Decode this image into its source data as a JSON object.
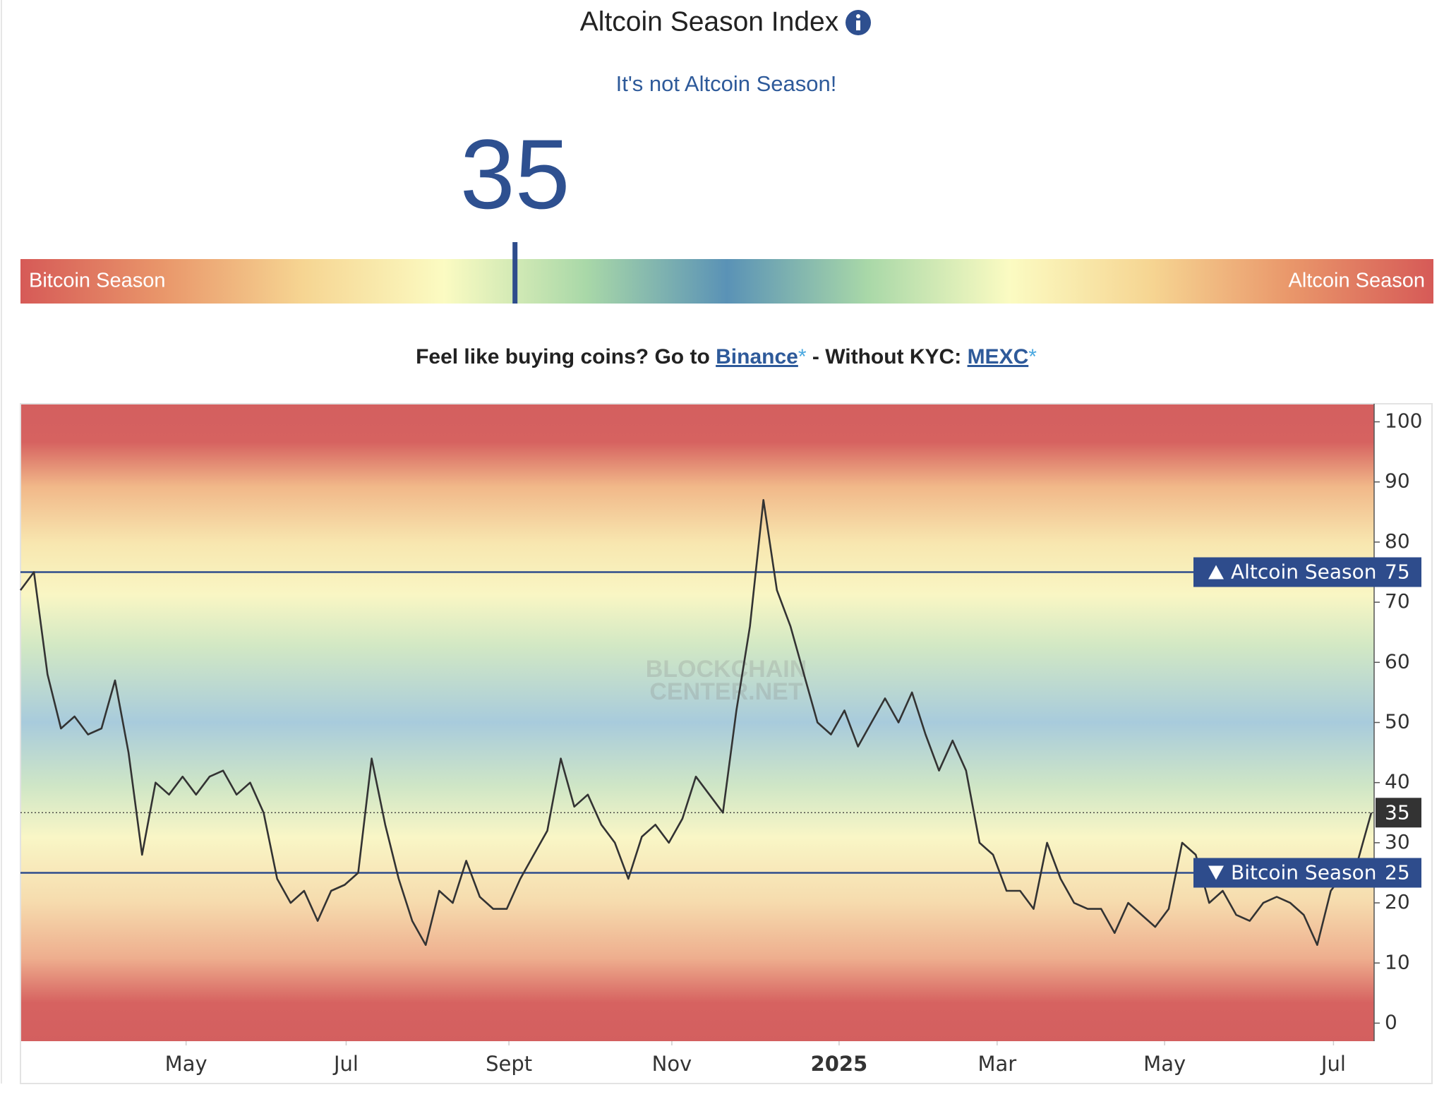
{
  "header": {
    "title": "Altcoin Season Index",
    "subtitle": "It's not Altcoin Season!"
  },
  "gauge": {
    "left_label": "Bitcoin Season",
    "right_label": "Altcoin Season",
    "range": [
      0,
      100
    ]
  },
  "promo": {
    "text1": "Feel like buying coins? Go to",
    "link1": "Binance",
    "mark": "*",
    "text2": "- Without KYC:",
    "link2": "MEXC"
  },
  "chart_data": {
    "type": "line",
    "watermark": [
      "BLOCKCHAIN",
      "CENTER.NET"
    ],
    "current": 35,
    "color": "#333333",
    "values": [
      72,
      75,
      58,
      49,
      51,
      48,
      49,
      57,
      45,
      28,
      40,
      38,
      41,
      38,
      41,
      42,
      38,
      40,
      35,
      24,
      20,
      22,
      17,
      22,
      23,
      25,
      44,
      33,
      24,
      17,
      13,
      22,
      20,
      27,
      21,
      19,
      19,
      24,
      28,
      32,
      44,
      36,
      38,
      33,
      30,
      24,
      31,
      33,
      30,
      34,
      41,
      38,
      35,
      52,
      66,
      87,
      72,
      66,
      58,
      50,
      48,
      52,
      46,
      50,
      54,
      50,
      55,
      48,
      42,
      47,
      42,
      30,
      28,
      22,
      22,
      19,
      30,
      24,
      20,
      19,
      19,
      15,
      20,
      18,
      16,
      19,
      30,
      28,
      20,
      22,
      18,
      17,
      20,
      21,
      20,
      18,
      13,
      22,
      25,
      27,
      35
    ],
    "xlim": [
      0,
      100
    ],
    "xticks": [
      {
        "value": 12.26,
        "label": "May"
      },
      {
        "value": 24.11,
        "label": "Jul"
      },
      {
        "value": 36.16,
        "label": "Sept"
      },
      {
        "value": 48.22,
        "label": "Nov"
      },
      {
        "value": 60.6,
        "label": "2025"
      },
      {
        "value": 72.3,
        "label": "Mar"
      },
      {
        "value": 84.7,
        "label": "May"
      },
      {
        "value": 97.2,
        "label": "Jul"
      }
    ],
    "ylim": [
      -3,
      103
    ],
    "yticks": [
      0,
      10,
      20,
      30,
      40,
      50,
      60,
      70,
      80,
      90,
      100
    ],
    "reference_lines": [
      {
        "value": 75,
        "label": "Altcoin Season",
        "direction": "up"
      },
      {
        "value": 25,
        "label": "Bitcoin Season",
        "direction": "down"
      }
    ]
  }
}
